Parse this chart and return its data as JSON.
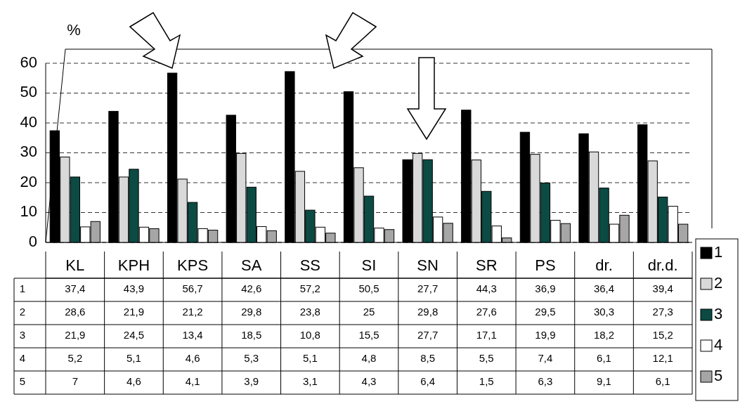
{
  "chart_data": {
    "type": "bar",
    "ylabel": "%",
    "categories": [
      "KL",
      "KPH",
      "KPS",
      "SA",
      "SS",
      "SI",
      "SN",
      "SR",
      "PS",
      "dr.",
      "dr.d."
    ],
    "series": [
      {
        "name": "1",
        "color": "#000000",
        "values": [
          37.4,
          43.9,
          56.7,
          42.6,
          57.2,
          50.5,
          27.7,
          44.3,
          36.9,
          36.4,
          39.4
        ],
        "value_labels": [
          "37,4",
          "43,9",
          "56,7",
          "42,6",
          "57,2",
          "50,5",
          "27,7",
          "44,3",
          "36,9",
          "36,4",
          "39,4"
        ]
      },
      {
        "name": "2",
        "color": "#d9d9d9",
        "values": [
          28.6,
          21.9,
          21.2,
          29.8,
          23.8,
          25,
          29.8,
          27.6,
          29.5,
          30.3,
          27.3
        ],
        "value_labels": [
          "28,6",
          "21,9",
          "21,2",
          "29,8",
          "23,8",
          "25",
          "29,8",
          "27,6",
          "29,5",
          "30,3",
          "27,3"
        ]
      },
      {
        "name": "3",
        "color": "#0b4b44",
        "values": [
          21.9,
          24.5,
          13.4,
          18.5,
          10.8,
          15.5,
          27.7,
          17.1,
          19.9,
          18.2,
          15.2
        ],
        "value_labels": [
          "21,9",
          "24,5",
          "13,4",
          "18,5",
          "10,8",
          "15,5",
          "27,7",
          "17,1",
          "19,9",
          "18,2",
          "15,2"
        ]
      },
      {
        "name": "4",
        "color": "#ffffff",
        "values": [
          5.2,
          5.1,
          4.6,
          5.3,
          5.1,
          4.8,
          8.5,
          5.5,
          7.4,
          6.1,
          12.1
        ],
        "value_labels": [
          "5,2",
          "5,1",
          "4,6",
          "5,3",
          "5,1",
          "4,8",
          "8,5",
          "5,5",
          "7,4",
          "6,1",
          "12,1"
        ]
      },
      {
        "name": "5",
        "color": "#a6a6a6",
        "values": [
          7,
          4.6,
          4.1,
          3.9,
          3.1,
          4.3,
          6.4,
          1.5,
          6.3,
          9.1,
          6.1
        ],
        "value_labels": [
          "7",
          "4,6",
          "4,1",
          "3,9",
          "3,1",
          "4,3",
          "6,4",
          "1,5",
          "6,3",
          "9,1",
          "6,1"
        ]
      }
    ],
    "ylim": [
      0,
      60
    ],
    "yticks": [
      0,
      10,
      20,
      30,
      40,
      50,
      60
    ],
    "grid": "y",
    "line_style": "dashed",
    "legend": "right"
  }
}
